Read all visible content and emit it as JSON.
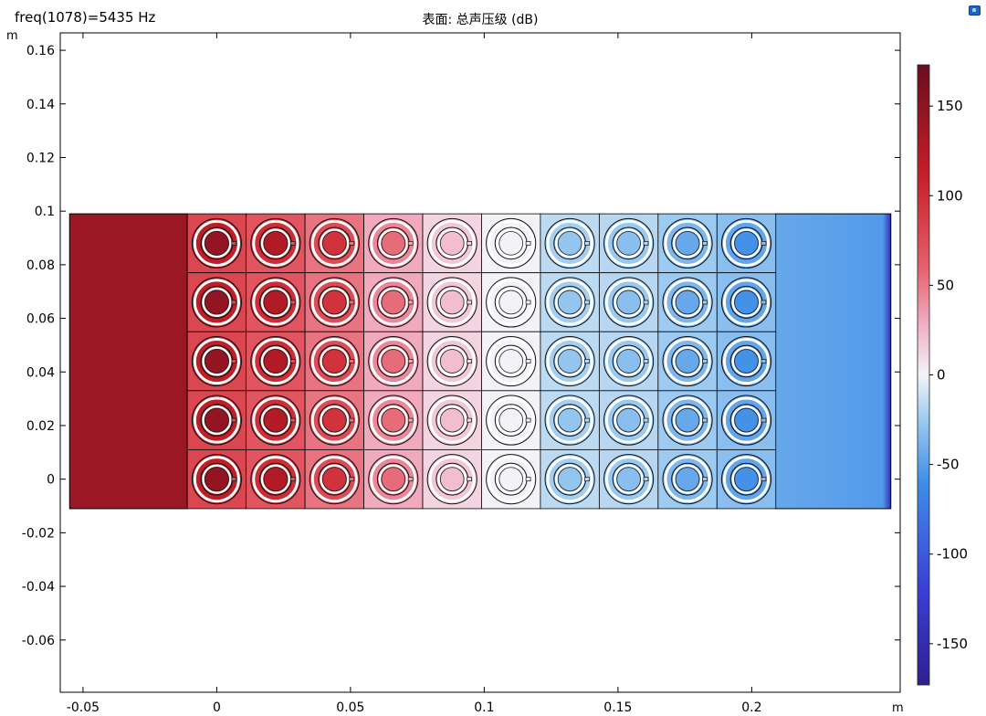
{
  "header": {
    "parameter_label": "freq(1078)=5435 Hz",
    "plot_title": "表面: 总声压级 (dB)"
  },
  "chart_data": {
    "type": "heatmap",
    "title": "表面: 总声压级 (dB)",
    "xlabel": "m",
    "ylabel": "m",
    "xlim": [
      -0.0585,
      0.2555
    ],
    "ylim": [
      -0.0795,
      0.1665
    ],
    "x_ticks": [
      -0.05,
      0,
      0.05,
      0.1,
      0.15,
      0.2
    ],
    "x_tick_labels": [
      "-0.05",
      "0",
      "0.05",
      "0.1",
      "0.15",
      "0.2"
    ],
    "y_ticks": [
      0.16,
      0.14,
      0.12,
      0.1,
      0.08,
      0.06,
      0.04,
      0.02,
      0,
      -0.02,
      -0.04,
      -0.06
    ],
    "y_tick_labels": [
      "0.16",
      "0.14",
      "0.12",
      "0.1",
      "0.08",
      "0.06",
      "0.04",
      "0.02",
      "0",
      "-0.02",
      "-0.04",
      "-0.06"
    ],
    "domain": {
      "x_min": -0.055,
      "x_max": 0.252,
      "y_min": -0.011,
      "y_max": 0.099
    },
    "inlet_region": {
      "x_min": -0.055,
      "x_max": -0.011,
      "value": 140
    },
    "outlet_region": {
      "x_min": 0.2089,
      "x_max": 0.252,
      "value_start": -45,
      "value_end": -85
    },
    "grid": {
      "x_start": -0.011,
      "cell_size": 0.022,
      "columns": 10,
      "rows": 5
    },
    "column_levels": [
      145,
      125,
      95,
      55,
      22,
      0,
      -28,
      -32,
      -45,
      -58
    ],
    "resonator": {
      "outer_radius_ratio": 0.42,
      "inner_radius_ratio": 0.27,
      "core_radius_ratio": 0.2
    },
    "colorbar": {
      "min": -173,
      "max": 173,
      "ticks": [
        150,
        100,
        50,
        0,
        -50,
        -100,
        -150
      ],
      "tick_labels": [
        "150",
        "100",
        "50",
        "0",
        "-50",
        "-100",
        "-150"
      ],
      "stops": [
        {
          "v": -173,
          "color": "#2e1f8f"
        },
        {
          "v": -120,
          "color": "#3a3fd4"
        },
        {
          "v": -60,
          "color": "#3f8ee8"
        },
        {
          "v": -25,
          "color": "#9ccaf0"
        },
        {
          "v": 0,
          "color": "#f3f3f7"
        },
        {
          "v": 25,
          "color": "#f2b6cc"
        },
        {
          "v": 60,
          "color": "#e5606c"
        },
        {
          "v": 110,
          "color": "#c82028"
        },
        {
          "v": 173,
          "color": "#6a0d1e"
        }
      ]
    }
  }
}
